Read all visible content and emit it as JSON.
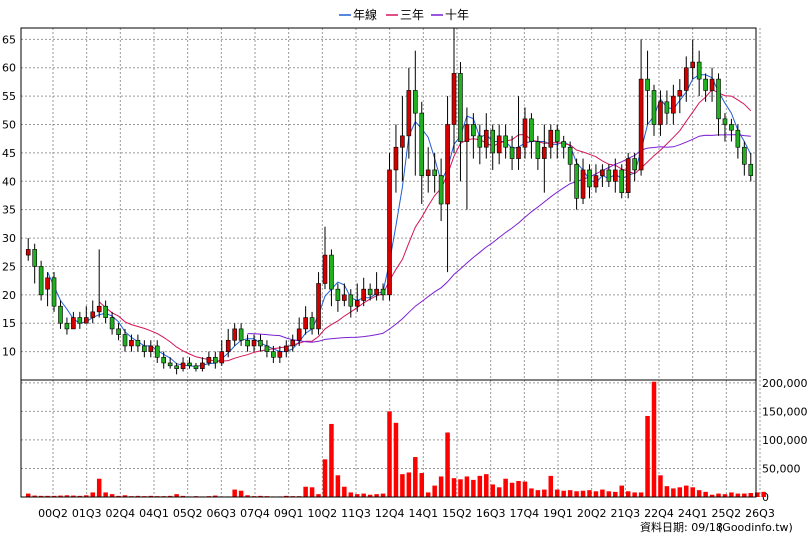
{
  "chart_data": {
    "type": "candlestick",
    "legend": [
      {
        "name": "年線",
        "color": "#1f5fd6"
      },
      {
        "name": "三年",
        "color": "#d4145a"
      },
      {
        "name": "十年",
        "color": "#7a1fd4"
      }
    ],
    "x_ticks": [
      "00Q2",
      "01Q3",
      "02Q4",
      "04Q1",
      "05Q2",
      "06Q3",
      "07Q4",
      "09Q1",
      "10Q2",
      "11Q3",
      "12Q4",
      "14Q1",
      "15Q2",
      "16Q3",
      "17Q4",
      "19Q1",
      "20Q2",
      "21Q3",
      "22Q4",
      "24Q1",
      "25Q2",
      "26Q3"
    ],
    "price_axis": {
      "ticks": [
        10,
        15,
        20,
        25,
        30,
        35,
        40,
        45,
        50,
        55,
        60,
        65
      ],
      "ylim": [
        5,
        67
      ]
    },
    "volume_axis": {
      "ticks": [
        "0",
        "50,000",
        "100,000",
        "150,000",
        "200,000"
      ],
      "values": [
        0,
        50000,
        100000,
        150000,
        200000
      ],
      "ylim": [
        0,
        205000
      ]
    },
    "up_color": "#d40000",
    "down_color": "#22b022",
    "volume_color": "#ff0000",
    "grid": true,
    "candles": [
      [
        27,
        28,
        30,
        26
      ],
      [
        28,
        25,
        29,
        22
      ],
      [
        25,
        20,
        26,
        19
      ],
      [
        21,
        23,
        24,
        18
      ],
      [
        23,
        18,
        24,
        17
      ],
      [
        18,
        15,
        19,
        14
      ],
      [
        15,
        14,
        16,
        13
      ],
      [
        14,
        16,
        17,
        14
      ],
      [
        16,
        15,
        17,
        14
      ],
      [
        15,
        16,
        18,
        15
      ],
      [
        16,
        17,
        19,
        15
      ],
      [
        17,
        18,
        28,
        16
      ],
      [
        18,
        16,
        19,
        15
      ],
      [
        16,
        14,
        17,
        13
      ],
      [
        14,
        13,
        15,
        12
      ],
      [
        13,
        11,
        14,
        10
      ],
      [
        11,
        12,
        13,
        10
      ],
      [
        12,
        11,
        13,
        10
      ],
      [
        11,
        10,
        12,
        9
      ],
      [
        10,
        11,
        12,
        9
      ],
      [
        11,
        9,
        12,
        8
      ],
      [
        9,
        8,
        10,
        7
      ],
      [
        8,
        7.5,
        9,
        7
      ],
      [
        7.5,
        7,
        8,
        6
      ],
      [
        7,
        8,
        9,
        6.5
      ],
      [
        8,
        7.5,
        9,
        7
      ],
      [
        7.5,
        7,
        8,
        6.5
      ],
      [
        7,
        8,
        9,
        6.5
      ],
      [
        8,
        9,
        10,
        7.5
      ],
      [
        9,
        8,
        10,
        7
      ],
      [
        8,
        10,
        12,
        7.5
      ],
      [
        10,
        12,
        14,
        9
      ],
      [
        12,
        14,
        15,
        11
      ],
      [
        14,
        12,
        15,
        11
      ],
      [
        12,
        11,
        13,
        10
      ],
      [
        11,
        12,
        13,
        10
      ],
      [
        12,
        11,
        13,
        10
      ],
      [
        11,
        10,
        12,
        9
      ],
      [
        10,
        9,
        11,
        8
      ],
      [
        9,
        10,
        11,
        8
      ],
      [
        10,
        11,
        12,
        9
      ],
      [
        11,
        12,
        13,
        10
      ],
      [
        12,
        14,
        16,
        11
      ],
      [
        14,
        16,
        18,
        13
      ],
      [
        16,
        14,
        17,
        13
      ],
      [
        14,
        22,
        24,
        13
      ],
      [
        22,
        27,
        32,
        21
      ],
      [
        27,
        21,
        28,
        18
      ],
      [
        21,
        19,
        22,
        17
      ],
      [
        19,
        20,
        22,
        18
      ],
      [
        20,
        18,
        21,
        16
      ],
      [
        18,
        19,
        22,
        17
      ],
      [
        19,
        21,
        23,
        18
      ],
      [
        21,
        20,
        22,
        19
      ],
      [
        20,
        21,
        24,
        19
      ],
      [
        21,
        20,
        22,
        19
      ],
      [
        20,
        42,
        45,
        19
      ],
      [
        42,
        46,
        50,
        38
      ],
      [
        46,
        48,
        55,
        40
      ],
      [
        48,
        56,
        60,
        44
      ],
      [
        56,
        52,
        63,
        41
      ],
      [
        52,
        41,
        54,
        36
      ],
      [
        41,
        42,
        46,
        38
      ],
      [
        42,
        41,
        45,
        38
      ],
      [
        41,
        36,
        44,
        33
      ],
      [
        36,
        50,
        55,
        24
      ],
      [
        50,
        59,
        67,
        45
      ],
      [
        59,
        47,
        61,
        40
      ],
      [
        47,
        50,
        53,
        35
      ],
      [
        50,
        48,
        52,
        44
      ],
      [
        48,
        46,
        50,
        43
      ],
      [
        46,
        49,
        52,
        44
      ],
      [
        49,
        45,
        50,
        42
      ],
      [
        45,
        48,
        50,
        43
      ],
      [
        48,
        46,
        50,
        44
      ],
      [
        46,
        44,
        48,
        42
      ],
      [
        44,
        46,
        55,
        42
      ],
      [
        46,
        51,
        53,
        44
      ],
      [
        51,
        47,
        52,
        44
      ],
      [
        47,
        44,
        48,
        42
      ],
      [
        44,
        46,
        50,
        38
      ],
      [
        46,
        49,
        50,
        44
      ],
      [
        49,
        47,
        50,
        44
      ],
      [
        47,
        46,
        48,
        44
      ],
      [
        46,
        43,
        47,
        40
      ],
      [
        43,
        37,
        44,
        35
      ],
      [
        37,
        42,
        44,
        36
      ],
      [
        42,
        39,
        43,
        37
      ],
      [
        39,
        41,
        43,
        38
      ],
      [
        41,
        42,
        43,
        39
      ],
      [
        42,
        40,
        43,
        39
      ],
      [
        40,
        42,
        44,
        38
      ],
      [
        42,
        38,
        43,
        37
      ],
      [
        38,
        44,
        45,
        37
      ],
      [
        44,
        42,
        45,
        40
      ],
      [
        42,
        58,
        65,
        41
      ],
      [
        58,
        56,
        63,
        50
      ],
      [
        56,
        50,
        57,
        48
      ],
      [
        50,
        54,
        56,
        48
      ],
      [
        54,
        52,
        56,
        50
      ],
      [
        52,
        55,
        57,
        50
      ],
      [
        55,
        56,
        58,
        52
      ],
      [
        56,
        60,
        62,
        54
      ],
      [
        60,
        61,
        65,
        58
      ],
      [
        61,
        58,
        63,
        55
      ],
      [
        58,
        56,
        59,
        54
      ],
      [
        56,
        58,
        60,
        54
      ],
      [
        58,
        51,
        59,
        48
      ],
      [
        51,
        50,
        52,
        47
      ],
      [
        50,
        49,
        51,
        47
      ],
      [
        49,
        46,
        50,
        44
      ],
      [
        46,
        43,
        47,
        41
      ],
      [
        43,
        41,
        45,
        40
      ]
    ],
    "volume": [
      6000,
      2500,
      2000,
      2000,
      2000,
      2500,
      3000,
      2500,
      2000,
      3000,
      8000,
      32000,
      8000,
      5000,
      2000,
      3000,
      1500,
      2000,
      1500,
      2000,
      1500,
      1500,
      2000,
      5000,
      2000,
      1000,
      1500,
      1000,
      1500,
      2500,
      1000,
      1000,
      13000,
      11000,
      3000,
      1500,
      2000,
      1500,
      1000,
      1000,
      2000,
      1500,
      1500,
      18000,
      17000,
      5000,
      66000,
      128000,
      38000,
      18000,
      8000,
      5000,
      6000,
      4000,
      5000,
      6000,
      150000,
      130000,
      40000,
      43000,
      70000,
      42000,
      8000,
      20000,
      36000,
      113000,
      33000,
      31000,
      36000,
      30000,
      37000,
      40000,
      22000,
      17000,
      32000,
      25000,
      28000,
      27000,
      15000,
      12000,
      13000,
      37000,
      13000,
      11000,
      12000,
      10000,
      11000,
      12000,
      10000,
      13000,
      10000,
      9000,
      20000,
      10000,
      8000,
      8000,
      142000,
      202000,
      38000,
      19000,
      15000,
      17000,
      20000,
      17000,
      12000,
      9000,
      4000,
      6000,
      5000,
      8000,
      6000,
      6000,
      7000,
      8000,
      9000
    ]
  },
  "footer": {
    "date_label": "資料日期: 09/18",
    "source": "(Goodinfo.tw)"
  }
}
